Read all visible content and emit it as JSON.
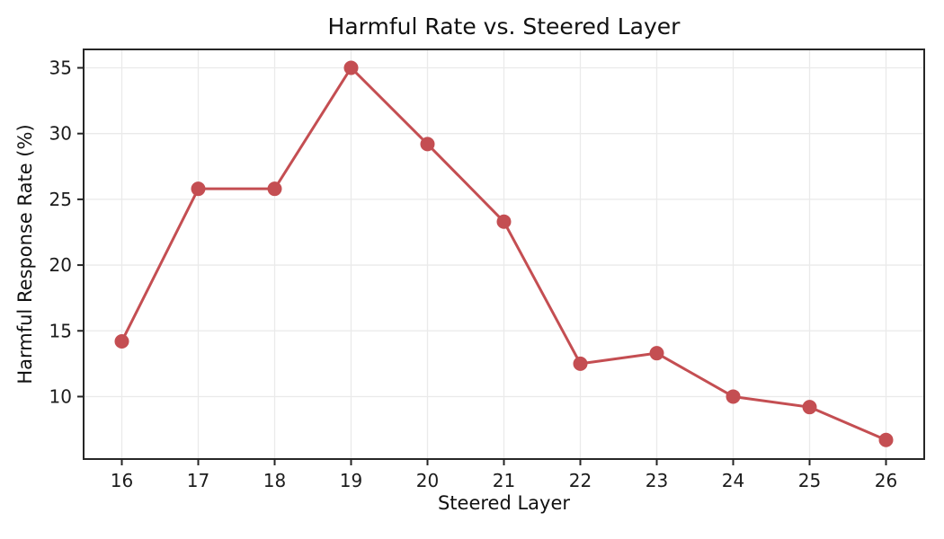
{
  "chart_data": {
    "type": "line",
    "title": "Harmful Rate vs. Steered Layer",
    "xlabel": "Steered Layer",
    "ylabel": "Harmful Response Rate (%)",
    "x": [
      16,
      17,
      18,
      19,
      20,
      21,
      22,
      23,
      24,
      25,
      26
    ],
    "y": [
      14.2,
      25.8,
      25.8,
      35.0,
      29.2,
      23.3,
      12.5,
      13.3,
      10.0,
      9.2,
      6.7
    ],
    "xticks": [
      16,
      17,
      18,
      19,
      20,
      21,
      22,
      23,
      24,
      25,
      26
    ],
    "yticks": [
      10,
      15,
      20,
      25,
      30,
      35
    ],
    "xlim": [
      15.5,
      26.5
    ],
    "ylim": [
      5.25,
      36.4
    ],
    "grid": true,
    "legend_position": "none",
    "line_color": "#c44e52",
    "marker": "circle",
    "marker_radius": 8,
    "line_width": 3,
    "grid_color": "#eaeaea",
    "spine_color": "#262626",
    "tick_label_color": "#1c1c1c",
    "background_color": "#ffffff"
  }
}
